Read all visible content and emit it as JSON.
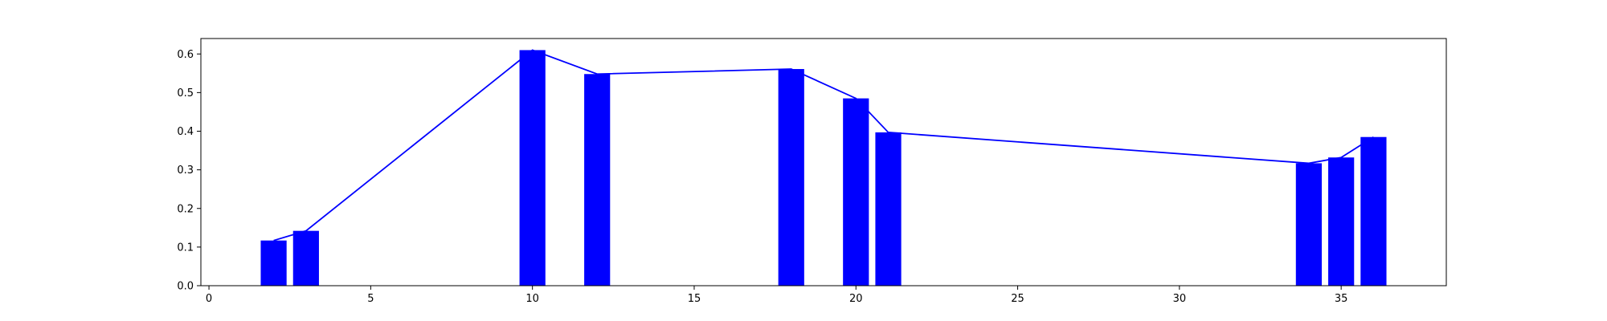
{
  "chart_data": {
    "type": "bar",
    "title": "",
    "xlabel": "",
    "ylabel": "",
    "xlim": [
      -0.25,
      38.25
    ],
    "ylim": [
      0,
      0.64
    ],
    "x_ticks": [
      0,
      5,
      10,
      15,
      20,
      25,
      30,
      35
    ],
    "x_tick_labels": [
      "0",
      "5",
      "10",
      "15",
      "20",
      "25",
      "30",
      "35"
    ],
    "y_ticks": [
      0.0,
      0.1,
      0.2,
      0.3,
      0.4,
      0.5,
      0.6
    ],
    "y_tick_labels": [
      "0.0",
      "0.1",
      "0.2",
      "0.3",
      "0.4",
      "0.5",
      "0.6"
    ],
    "grid": false,
    "legend": "none",
    "bar_width": 0.8,
    "series": [
      {
        "kind": "bar",
        "color": "#0000ff",
        "x": [
          2,
          3,
          10,
          12,
          18,
          20,
          21,
          34,
          35,
          36
        ],
        "values": [
          0.117,
          0.142,
          0.61,
          0.548,
          0.561,
          0.485,
          0.397,
          0.317,
          0.332,
          0.385
        ]
      },
      {
        "kind": "line",
        "color": "#0000ff",
        "x": [
          2,
          3,
          10,
          12,
          18,
          20,
          21,
          34,
          35,
          36
        ],
        "values": [
          0.117,
          0.142,
          0.61,
          0.548,
          0.561,
          0.485,
          0.397,
          0.317,
          0.332,
          0.385
        ]
      }
    ]
  }
}
